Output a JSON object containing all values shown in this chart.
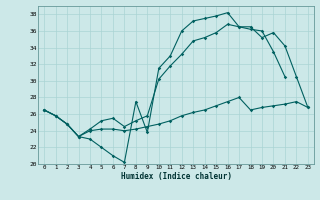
{
  "xlabel": "Humidex (Indice chaleur)",
  "bg_color": "#cce8e8",
  "grid_color": "#aad4d4",
  "line_color": "#006060",
  "xlim": [
    -0.5,
    23.5
  ],
  "ylim": [
    20,
    39
  ],
  "xticks": [
    0,
    1,
    2,
    3,
    4,
    5,
    6,
    7,
    8,
    9,
    10,
    11,
    12,
    13,
    14,
    15,
    16,
    17,
    18,
    19,
    20,
    21,
    22,
    23
  ],
  "yticks": [
    20,
    22,
    24,
    26,
    28,
    30,
    32,
    34,
    36,
    38
  ],
  "line1_y": [
    26.5,
    25.8,
    24.8,
    23.3,
    23.0,
    22.0,
    21.0,
    20.2,
    27.5,
    23.8,
    31.5,
    33.0,
    36.0,
    37.2,
    37.5,
    37.8,
    38.2,
    36.5,
    36.2,
    36.0,
    33.5,
    30.5,
    null,
    null
  ],
  "line2_y": [
    26.5,
    25.8,
    24.8,
    23.3,
    24.2,
    25.2,
    25.5,
    24.5,
    25.2,
    25.8,
    30.2,
    31.8,
    33.2,
    34.8,
    35.2,
    35.8,
    36.8,
    36.5,
    36.5,
    35.2,
    35.8,
    34.2,
    30.5,
    26.8
  ],
  "line3_y": [
    26.5,
    25.8,
    24.8,
    23.3,
    24.0,
    24.2,
    24.2,
    24.0,
    24.2,
    24.5,
    24.8,
    25.2,
    25.8,
    26.2,
    26.5,
    27.0,
    27.5,
    28.0,
    26.5,
    26.8,
    27.0,
    27.2,
    27.5,
    26.8
  ]
}
